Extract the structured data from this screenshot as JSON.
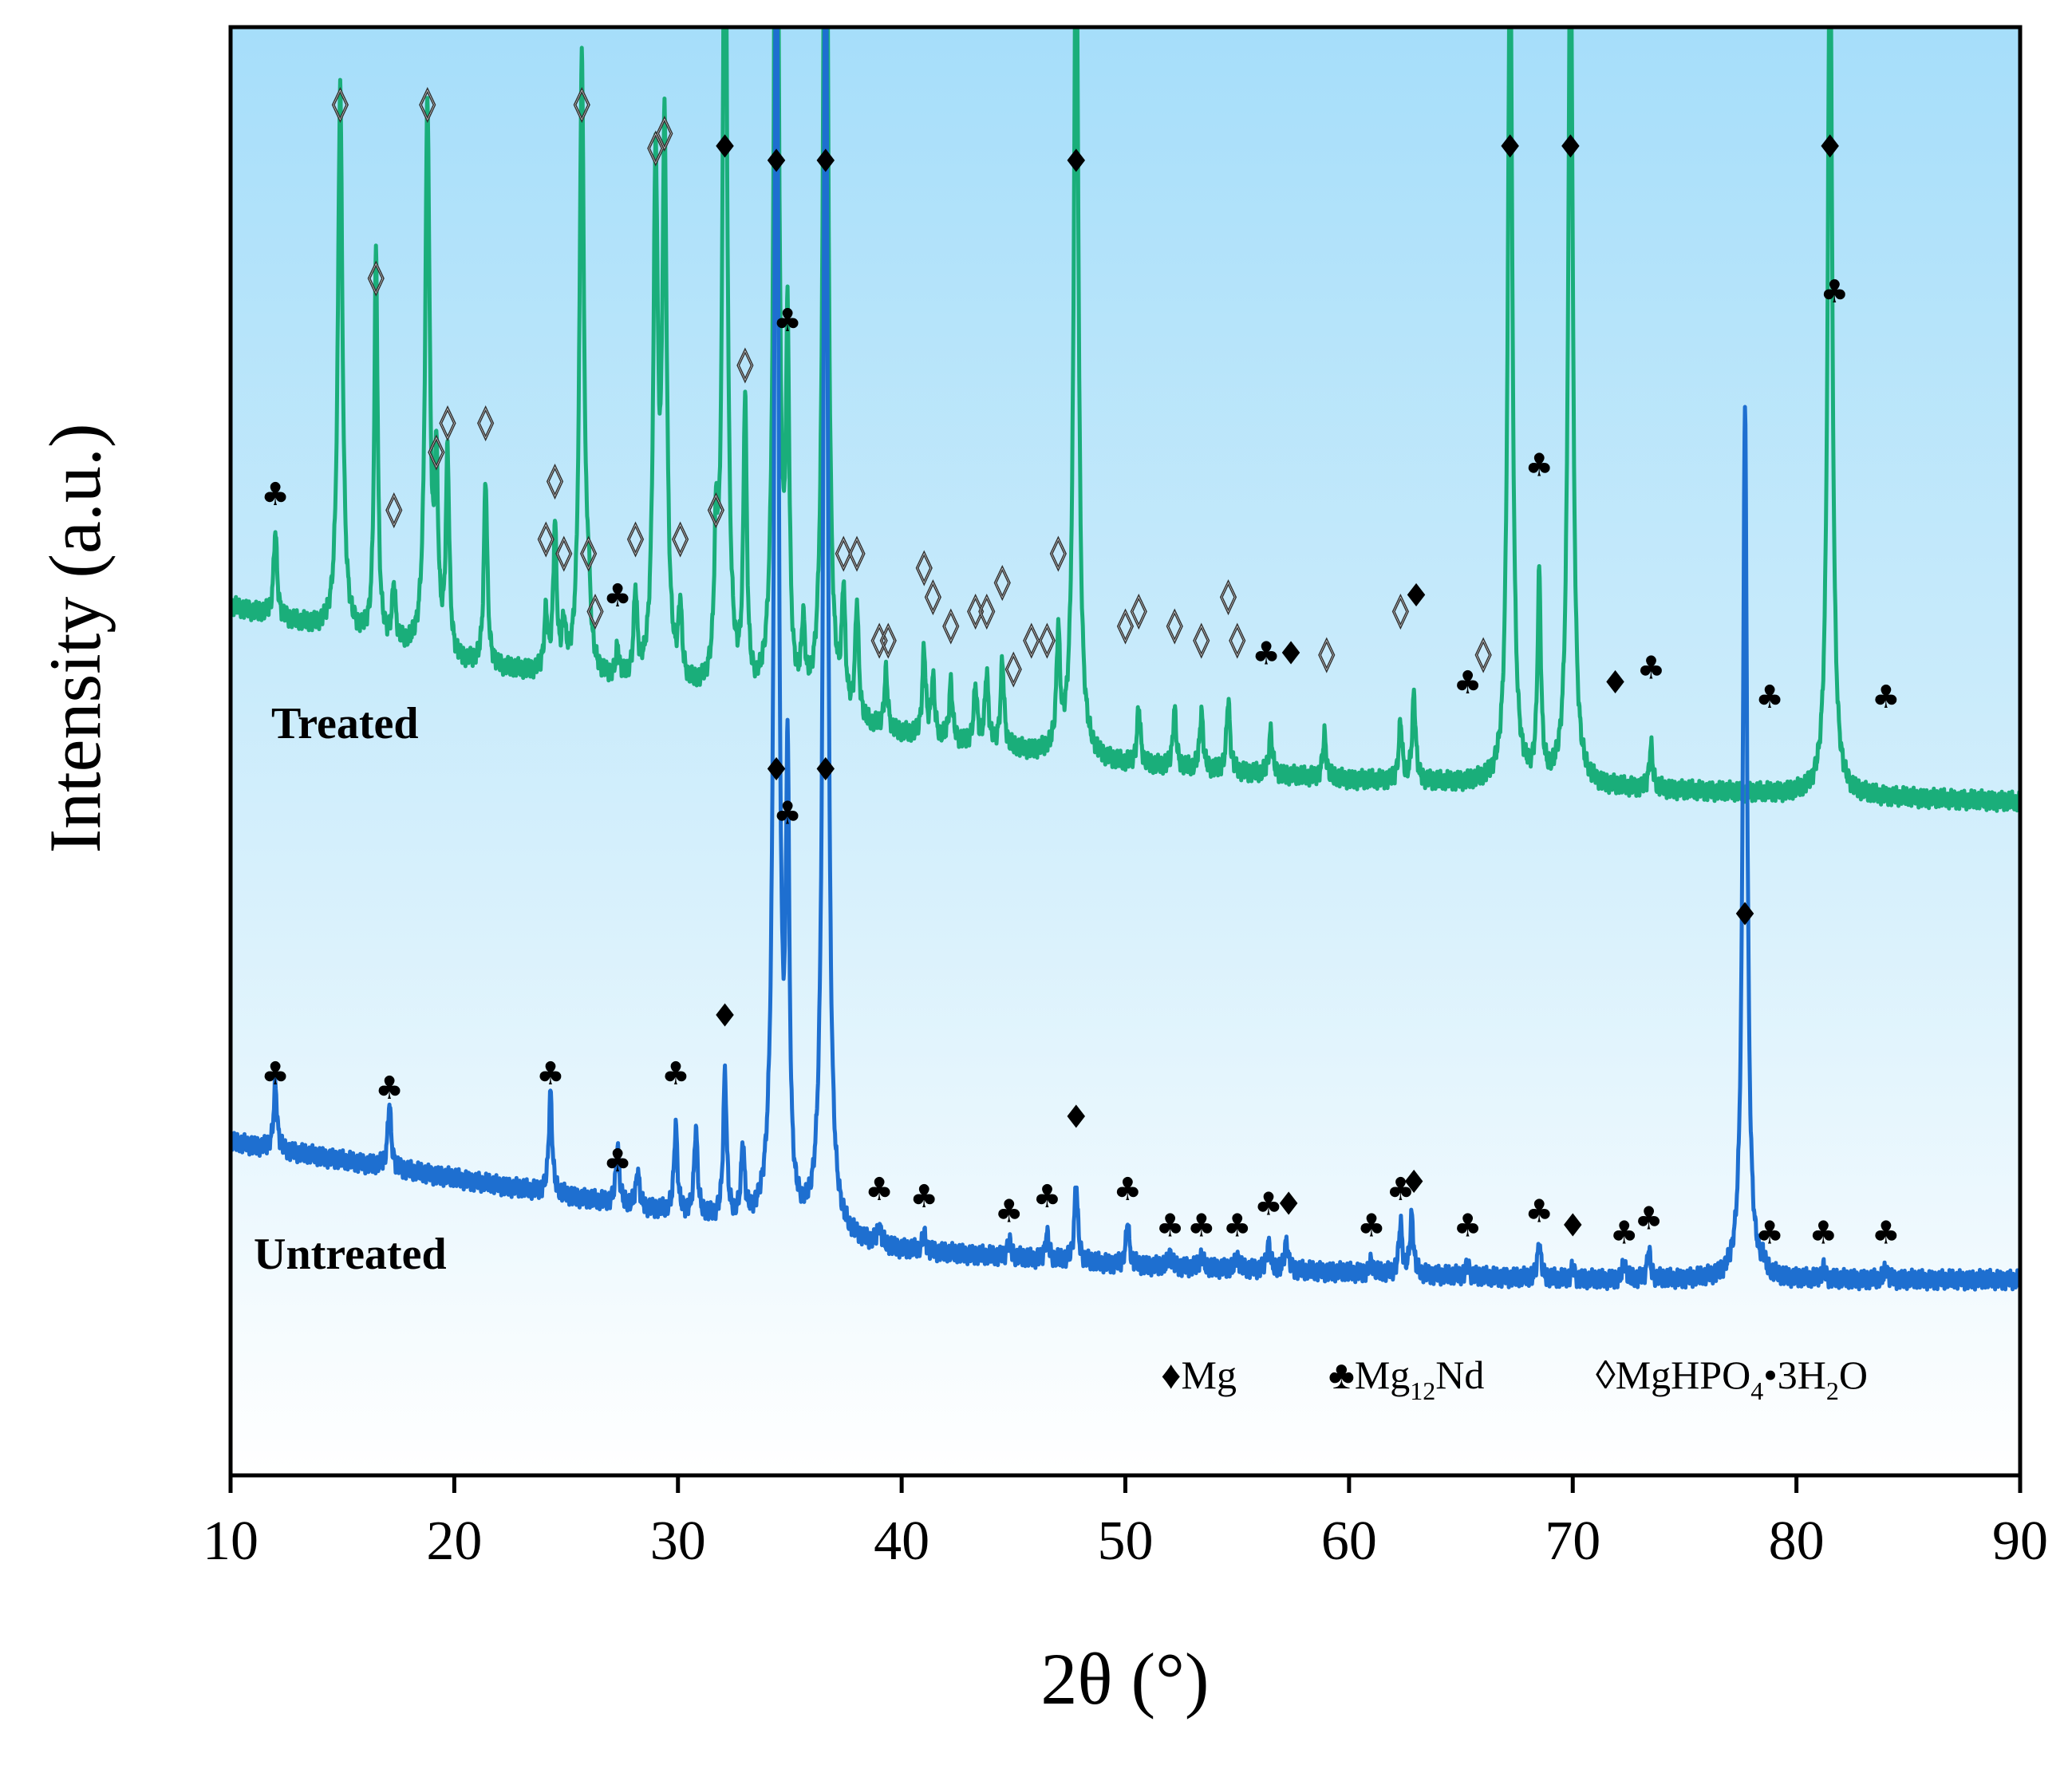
{
  "chart_data": {
    "type": "line",
    "title": "",
    "xlabel": "2θ (°)",
    "ylabel": "Intensity (a.u.)",
    "xlim": [
      10,
      90
    ],
    "xticks": [
      "10",
      "20",
      "30",
      "40",
      "50",
      "60",
      "70",
      "80",
      "90"
    ],
    "yticks_shown": false,
    "background": "gradient-light-blue",
    "series": [
      {
        "name": "Treated",
        "color": "#1aae7a",
        "baseline": [
          [
            10,
            0.6
          ],
          [
            20,
            0.56
          ],
          [
            30,
            0.54
          ],
          [
            40,
            0.51
          ],
          [
            50,
            0.49
          ],
          [
            60,
            0.48
          ],
          [
            70,
            0.475
          ],
          [
            80,
            0.47
          ],
          [
            90,
            0.465
          ]
        ],
        "peaks": [
          [
            12.0,
            0.06
          ],
          [
            14.9,
            0.38
          ],
          [
            16.5,
            0.27
          ],
          [
            17.3,
            0.04
          ],
          [
            18.8,
            0.38
          ],
          [
            19.2,
            0.12
          ],
          [
            19.7,
            0.14
          ],
          [
            21.4,
            0.13
          ],
          [
            24.1,
            0.04
          ],
          [
            24.5,
            0.1
          ],
          [
            24.9,
            0.03
          ],
          [
            25.7,
            0.43
          ],
          [
            26.0,
            0.04
          ],
          [
            27.3,
            0.02
          ],
          [
            28.1,
            0.06
          ],
          [
            29.0,
            0.35
          ],
          [
            29.4,
            0.37
          ],
          [
            30.1,
            0.05
          ],
          [
            31.7,
            0.09
          ],
          [
            32.1,
            0.62
          ],
          [
            33.0,
            0.2
          ],
          [
            34.4,
            0.8
          ],
          [
            34.9,
            0.24
          ],
          [
            35.6,
            0.05
          ],
          [
            36.6,
            0.8
          ],
          [
            37.4,
            0.08
          ],
          [
            38.0,
            0.08
          ],
          [
            39.3,
            0.04
          ],
          [
            41.0,
            0.06
          ],
          [
            41.4,
            0.04
          ],
          [
            42.2,
            0.04
          ],
          [
            43.3,
            0.04
          ],
          [
            43.8,
            0.05
          ],
          [
            44.5,
            0.06
          ],
          [
            47.0,
            0.08
          ],
          [
            47.8,
            0.62
          ],
          [
            50.6,
            0.04
          ],
          [
            52.2,
            0.04
          ],
          [
            53.4,
            0.04
          ],
          [
            54.6,
            0.05
          ],
          [
            56.5,
            0.03
          ],
          [
            58.9,
            0.03
          ],
          [
            62.3,
            0.04
          ],
          [
            62.9,
            0.06
          ],
          [
            67.2,
            0.6
          ],
          [
            68.5,
            0.14
          ],
          [
            69.9,
            0.62
          ],
          [
            73.5,
            0.03
          ],
          [
            81.5,
            0.62
          ]
        ]
      },
      {
        "name": "Untreated",
        "color": "#1e6fd0",
        "baseline": [
          [
            10,
            0.23
          ],
          [
            20,
            0.205
          ],
          [
            30,
            0.18
          ],
          [
            40,
            0.155
          ],
          [
            50,
            0.145
          ],
          [
            60,
            0.14
          ],
          [
            70,
            0.135
          ],
          [
            80,
            0.135
          ],
          [
            90,
            0.135
          ]
        ],
        "peaks": [
          [
            12.0,
            0.045
          ],
          [
            17.1,
            0.045
          ],
          [
            24.3,
            0.07
          ],
          [
            27.3,
            0.04
          ],
          [
            28.2,
            0.025
          ],
          [
            29.9,
            0.06
          ],
          [
            30.8,
            0.06
          ],
          [
            32.1,
            0.1
          ],
          [
            32.9,
            0.05
          ],
          [
            34.4,
            0.95
          ],
          [
            34.9,
            0.3
          ],
          [
            36.6,
            0.95
          ],
          [
            39.0,
            0.012
          ],
          [
            41.0,
            0.012
          ],
          [
            44.8,
            0.012
          ],
          [
            46.5,
            0.018
          ],
          [
            47.8,
            0.055
          ],
          [
            50.1,
            0.03
          ],
          [
            52.0,
            0.008
          ],
          [
            53.4,
            0.008
          ],
          [
            55.0,
            0.008
          ],
          [
            56.4,
            0.018
          ],
          [
            57.2,
            0.02
          ],
          [
            61.0,
            0.008
          ],
          [
            62.3,
            0.035
          ],
          [
            62.8,
            0.04
          ],
          [
            65.3,
            0.008
          ],
          [
            68.5,
            0.025
          ],
          [
            70.0,
            0.008
          ],
          [
            72.3,
            0.012
          ],
          [
            73.4,
            0.02
          ],
          [
            77.7,
            0.6
          ],
          [
            78.5,
            0.008
          ],
          [
            81.2,
            0.008
          ],
          [
            84.0,
            0.008
          ]
        ]
      }
    ],
    "phases": [
      {
        "symbol": "♦",
        "name": "Mg"
      },
      {
        "symbol": "♣",
        "name": "Mg12Nd"
      },
      {
        "symbol": "◊",
        "name": "MgHPO4•3H2O"
      }
    ],
    "peak_markers": {
      "Treated": [
        {
          "x": 12.0,
          "y": 0.67,
          "phase": "♣"
        },
        {
          "x": 14.9,
          "y": 0.94,
          "phase": "◊"
        },
        {
          "x": 16.5,
          "y": 0.82,
          "phase": "◊"
        },
        {
          "x": 17.3,
          "y": 0.66,
          "phase": "◊"
        },
        {
          "x": 18.8,
          "y": 0.94,
          "phase": "◊"
        },
        {
          "x": 19.2,
          "y": 0.7,
          "phase": "◊"
        },
        {
          "x": 19.7,
          "y": 0.72,
          "phase": "◊"
        },
        {
          "x": 21.4,
          "y": 0.72,
          "phase": "◊"
        },
        {
          "x": 24.1,
          "y": 0.64,
          "phase": "◊"
        },
        {
          "x": 24.5,
          "y": 0.68,
          "phase": "◊"
        },
        {
          "x": 24.9,
          "y": 0.63,
          "phase": "◊"
        },
        {
          "x": 25.7,
          "y": 0.94,
          "phase": "◊"
        },
        {
          "x": 26.0,
          "y": 0.63,
          "phase": "◊"
        },
        {
          "x": 26.3,
          "y": 0.59,
          "phase": "◊"
        },
        {
          "x": 27.3,
          "y": 0.6,
          "phase": "♣"
        },
        {
          "x": 28.1,
          "y": 0.64,
          "phase": "◊"
        },
        {
          "x": 29.0,
          "y": 0.91,
          "phase": "◊"
        },
        {
          "x": 29.4,
          "y": 0.92,
          "phase": "◊"
        },
        {
          "x": 30.1,
          "y": 0.64,
          "phase": "◊"
        },
        {
          "x": 31.7,
          "y": 0.66,
          "phase": "◊"
        },
        {
          "x": 32.1,
          "y": 0.91,
          "phase": "♦"
        },
        {
          "x": 33.0,
          "y": 0.76,
          "phase": "◊"
        },
        {
          "x": 34.4,
          "y": 0.9,
          "phase": "♦"
        },
        {
          "x": 34.9,
          "y": 0.79,
          "phase": "♣"
        },
        {
          "x": 36.6,
          "y": 0.9,
          "phase": "♦"
        },
        {
          "x": 37.4,
          "y": 0.63,
          "phase": "◊"
        },
        {
          "x": 38.0,
          "y": 0.63,
          "phase": "◊"
        },
        {
          "x": 39.0,
          "y": 0.57,
          "phase": "◊"
        },
        {
          "x": 39.4,
          "y": 0.57,
          "phase": "◊"
        },
        {
          "x": 41.0,
          "y": 0.62,
          "phase": "◊"
        },
        {
          "x": 41.4,
          "y": 0.6,
          "phase": "◊"
        },
        {
          "x": 42.2,
          "y": 0.58,
          "phase": "◊"
        },
        {
          "x": 43.3,
          "y": 0.59,
          "phase": "◊"
        },
        {
          "x": 43.8,
          "y": 0.59,
          "phase": "◊"
        },
        {
          "x": 44.5,
          "y": 0.61,
          "phase": "◊"
        },
        {
          "x": 45.0,
          "y": 0.55,
          "phase": "◊"
        },
        {
          "x": 45.8,
          "y": 0.57,
          "phase": "◊"
        },
        {
          "x": 46.5,
          "y": 0.57,
          "phase": "◊"
        },
        {
          "x": 47.0,
          "y": 0.63,
          "phase": "◊"
        },
        {
          "x": 47.8,
          "y": 0.9,
          "phase": "♦"
        },
        {
          "x": 50.0,
          "y": 0.58,
          "phase": "◊"
        },
        {
          "x": 50.6,
          "y": 0.59,
          "phase": "◊"
        },
        {
          "x": 52.2,
          "y": 0.58,
          "phase": "◊"
        },
        {
          "x": 53.4,
          "y": 0.57,
          "phase": "◊"
        },
        {
          "x": 54.6,
          "y": 0.6,
          "phase": "◊"
        },
        {
          "x": 55.0,
          "y": 0.57,
          "phase": "◊"
        },
        {
          "x": 56.3,
          "y": 0.56,
          "phase": "♣"
        },
        {
          "x": 57.4,
          "y": 0.56,
          "phase": "♦"
        },
        {
          "x": 59.0,
          "y": 0.56,
          "phase": "◊"
        },
        {
          "x": 62.3,
          "y": 0.59,
          "phase": "◊"
        },
        {
          "x": 63.0,
          "y": 0.6,
          "phase": "♦"
        },
        {
          "x": 65.3,
          "y": 0.54,
          "phase": "♣"
        },
        {
          "x": 66.0,
          "y": 0.56,
          "phase": "◊"
        },
        {
          "x": 67.2,
          "y": 0.91,
          "phase": "♦"
        },
        {
          "x": 68.5,
          "y": 0.69,
          "phase": "♣"
        },
        {
          "x": 69.9,
          "y": 0.91,
          "phase": "♦"
        },
        {
          "x": 71.9,
          "y": 0.54,
          "phase": "♦"
        },
        {
          "x": 73.5,
          "y": 0.55,
          "phase": "♣"
        },
        {
          "x": 78.8,
          "y": 0.53,
          "phase": "♣"
        },
        {
          "x": 81.5,
          "y": 0.91,
          "phase": "♦"
        },
        {
          "x": 81.7,
          "y": 0.81,
          "phase": "♣"
        },
        {
          "x": 84.0,
          "y": 0.53,
          "phase": "♣"
        }
      ],
      "Untreated": [
        {
          "x": 34.4,
          "y": 0.48,
          "phase": "♦"
        },
        {
          "x": 34.9,
          "y": 0.45,
          "phase": "♣"
        },
        {
          "x": 36.6,
          "y": 0.48,
          "phase": "♦"
        },
        {
          "x": 12.0,
          "y": 0.27,
          "phase": "♣"
        },
        {
          "x": 17.1,
          "y": 0.26,
          "phase": "♣"
        },
        {
          "x": 24.3,
          "y": 0.27,
          "phase": "♣"
        },
        {
          "x": 27.3,
          "y": 0.21,
          "phase": "♣"
        },
        {
          "x": 29.9,
          "y": 0.27,
          "phase": "♣"
        },
        {
          "x": 32.1,
          "y": 0.31,
          "phase": "♦"
        },
        {
          "x": 39.0,
          "y": 0.19,
          "phase": "♣"
        },
        {
          "x": 41.0,
          "y": 0.185,
          "phase": "♣"
        },
        {
          "x": 44.8,
          "y": 0.175,
          "phase": "♣"
        },
        {
          "x": 46.5,
          "y": 0.185,
          "phase": "♣"
        },
        {
          "x": 47.8,
          "y": 0.24,
          "phase": "♦"
        },
        {
          "x": 50.1,
          "y": 0.19,
          "phase": "♣"
        },
        {
          "x": 52.0,
          "y": 0.165,
          "phase": "♣"
        },
        {
          "x": 53.4,
          "y": 0.165,
          "phase": "♣"
        },
        {
          "x": 55.0,
          "y": 0.165,
          "phase": "♣"
        },
        {
          "x": 56.4,
          "y": 0.18,
          "phase": "♣"
        },
        {
          "x": 57.3,
          "y": 0.18,
          "phase": "♦"
        },
        {
          "x": 61.0,
          "y": 0.165,
          "phase": "♣"
        },
        {
          "x": 62.3,
          "y": 0.19,
          "phase": "♣"
        },
        {
          "x": 62.9,
          "y": 0.195,
          "phase": "♦"
        },
        {
          "x": 65.3,
          "y": 0.165,
          "phase": "♣"
        },
        {
          "x": 68.5,
          "y": 0.175,
          "phase": "♣"
        },
        {
          "x": 70.0,
          "y": 0.165,
          "phase": "♦"
        },
        {
          "x": 72.3,
          "y": 0.16,
          "phase": "♣"
        },
        {
          "x": 73.4,
          "y": 0.17,
          "phase": "♣"
        },
        {
          "x": 77.7,
          "y": 0.38,
          "phase": "♦"
        },
        {
          "x": 78.8,
          "y": 0.16,
          "phase": "♣"
        },
        {
          "x": 81.2,
          "y": 0.16,
          "phase": "♣"
        },
        {
          "x": 84.0,
          "y": 0.16,
          "phase": "♣"
        }
      ]
    }
  },
  "labels": {
    "treated": "Treated",
    "untreated": "Untreated"
  },
  "legend": {
    "mg_symbol": "♦",
    "mg_label": "Mg",
    "mg12nd_symbol": "♣",
    "mg12nd_label_main": "Mg",
    "mg12nd_label_sub": "12",
    "mg12nd_label_tail": "Nd",
    "mghpo4_symbol": "◊",
    "mghpo4_label_main": "MgHPO",
    "mghpo4_label_sub1": "4",
    "mghpo4_label_mid": "•3H",
    "mghpo4_label_sub2": "2",
    "mghpo4_label_tail": "O"
  }
}
